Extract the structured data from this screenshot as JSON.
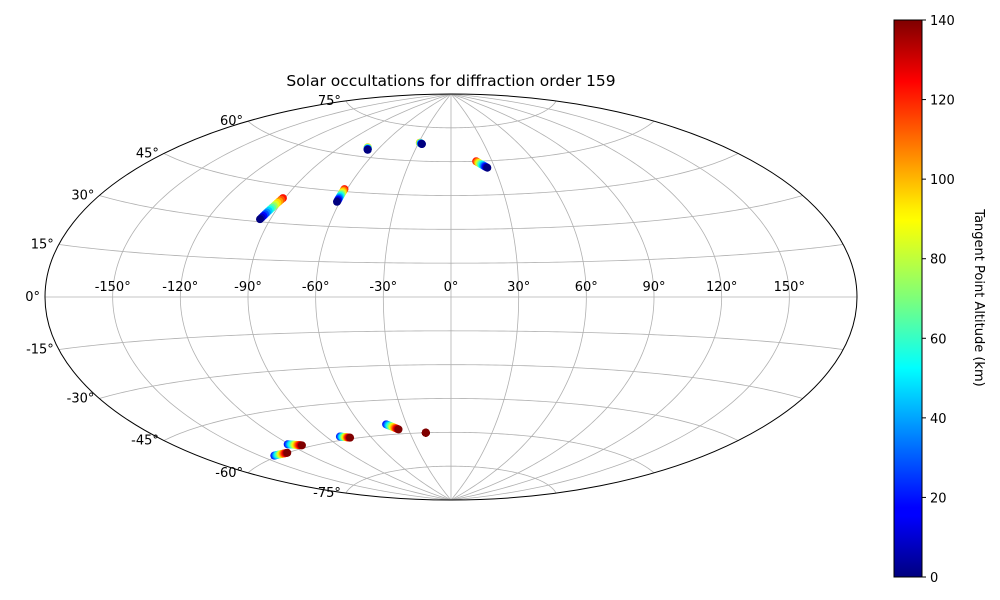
{
  "chart_data": {
    "type": "scatter",
    "projection": "aitoff",
    "title": "Solar occultations for diffraction order 159",
    "xlabel": "",
    "ylabel": "",
    "grid": true,
    "x_ticks": [
      "-150°",
      "-120°",
      "-90°",
      "-60°",
      "-30°",
      "0°",
      "30°",
      "60°",
      "90°",
      "120°",
      "150°"
    ],
    "x_tick_values": [
      -150,
      -120,
      -90,
      -60,
      -30,
      0,
      30,
      60,
      90,
      120,
      150
    ],
    "y_ticks": [
      "-75°",
      "-60°",
      "-45°",
      "-30°",
      "-15°",
      "0°",
      "15°",
      "30°",
      "45°",
      "60°",
      "75°"
    ],
    "y_tick_values": [
      -75,
      -60,
      -45,
      -30,
      -15,
      0,
      15,
      30,
      45,
      60,
      75
    ],
    "xlim": [
      -180,
      180
    ],
    "ylim": [
      -90,
      90
    ],
    "colorbar": {
      "label": "Tangent Point Altitude (km)",
      "ticks": [
        "0",
        "20",
        "40",
        "60",
        "80",
        "100",
        "120",
        "140"
      ],
      "tick_values": [
        0,
        20,
        40,
        60,
        80,
        100,
        120,
        140
      ],
      "range": [
        0,
        140
      ],
      "colormap": "jet"
    },
    "tracks": [
      {
        "start": [
          -69.5,
          64.0
        ],
        "end": [
          -67.5,
          63.0
        ],
        "alt_start": 100,
        "alt_end": 0
      },
      {
        "start": [
          -29.0,
          68.0
        ],
        "end": [
          -26.5,
          67.5
        ],
        "alt_start": 100,
        "alt_end": 0
      },
      {
        "start": [
          18.5,
          60.0
        ],
        "end": [
          25.0,
          57.0
        ],
        "alt_start": 120,
        "alt_end": 0
      },
      {
        "start": [
          -61.5,
          46.0
        ],
        "end": [
          -61.5,
          40.5
        ],
        "alt_start": 120,
        "alt_end": 0
      },
      {
        "start": [
          -91.0,
          40.0
        ],
        "end": [
          -95.0,
          31.0
        ],
        "alt_start": 120,
        "alt_end": 0
      },
      {
        "start": [
          -142.0,
          -59.5
        ],
        "end": [
          -131.0,
          -60.0
        ],
        "alt_start": 20,
        "alt_end": 140
      },
      {
        "start": [
          -121.0,
          -57.5
        ],
        "end": [
          -113.5,
          -59.0
        ],
        "alt_start": 20,
        "alt_end": 140
      },
      {
        "start": [
          -81.0,
          -58.5
        ],
        "end": [
          -75.0,
          -59.5
        ],
        "alt_start": 20,
        "alt_end": 140
      },
      {
        "start": [
          -43.5,
          -55.5
        ],
        "end": [
          -37.0,
          -58.0
        ],
        "alt_start": 20,
        "alt_end": 140
      },
      {
        "start": [
          -18.5,
          -60.0
        ],
        "end": [
          -18.5,
          -60.0
        ],
        "alt_start": 140,
        "alt_end": 140
      }
    ]
  }
}
